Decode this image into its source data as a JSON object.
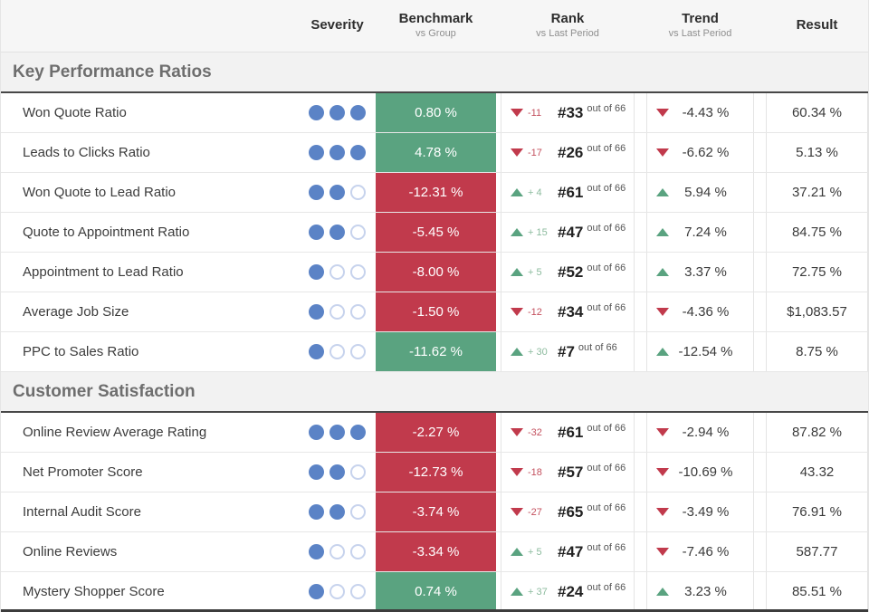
{
  "header": {
    "columns": [
      {
        "label": "Severity",
        "sublabel": ""
      },
      {
        "label": "Benchmark",
        "sublabel": "vs Group"
      },
      {
        "label": "Rank",
        "sublabel": "vs Last Period"
      },
      {
        "label": "Trend",
        "sublabel": "vs Last Period"
      },
      {
        "label": "Result",
        "sublabel": ""
      }
    ]
  },
  "severity_max": 3,
  "colors": {
    "positive": "#5aa380",
    "negative": "#c13a4c",
    "rank_delta_positive_text": "#8cbb9e",
    "rank_delta_negative_text": "#c4505e",
    "severity_dot_filled": "#5b83c6",
    "severity_dot_empty_border": "#c7d3ed"
  },
  "sections": [
    {
      "title": "Key Performance Ratios",
      "rows": [
        {
          "metric": "Won Quote Ratio",
          "severity": 3,
          "benchmark": {
            "value": "0.80 %",
            "status": "positive"
          },
          "rank": {
            "direction": "down",
            "delta": "-11",
            "position": "#33",
            "suffix": "out of 66"
          },
          "trend": {
            "direction": "down",
            "value": "-4.43 %"
          },
          "result": "60.34 %"
        },
        {
          "metric": "Leads to Clicks Ratio",
          "severity": 3,
          "benchmark": {
            "value": "4.78 %",
            "status": "positive"
          },
          "rank": {
            "direction": "down",
            "delta": "-17",
            "position": "#26",
            "suffix": "out of 66"
          },
          "trend": {
            "direction": "down",
            "value": "-6.62 %"
          },
          "result": "5.13 %"
        },
        {
          "metric": "Won Quote to Lead Ratio",
          "severity": 2,
          "benchmark": {
            "value": "-12.31 %",
            "status": "negative"
          },
          "rank": {
            "direction": "up",
            "delta": "+ 4",
            "position": "#61",
            "suffix": "out of 66"
          },
          "trend": {
            "direction": "up",
            "value": "5.94 %"
          },
          "result": "37.21 %"
        },
        {
          "metric": "Quote to Appointment Ratio",
          "severity": 2,
          "benchmark": {
            "value": "-5.45 %",
            "status": "negative"
          },
          "rank": {
            "direction": "up",
            "delta": "+ 15",
            "position": "#47",
            "suffix": "out of 66"
          },
          "trend": {
            "direction": "up",
            "value": "7.24 %"
          },
          "result": "84.75 %"
        },
        {
          "metric": "Appointment to Lead Ratio",
          "severity": 1,
          "benchmark": {
            "value": "-8.00 %",
            "status": "negative"
          },
          "rank": {
            "direction": "up",
            "delta": "+ 5",
            "position": "#52",
            "suffix": "out of 66"
          },
          "trend": {
            "direction": "up",
            "value": "3.37 %"
          },
          "result": "72.75 %"
        },
        {
          "metric": "Average Job Size",
          "severity": 1,
          "benchmark": {
            "value": "-1.50 %",
            "status": "negative"
          },
          "rank": {
            "direction": "down",
            "delta": "-12",
            "position": "#34",
            "suffix": "out of 66"
          },
          "trend": {
            "direction": "down",
            "value": "-4.36 %"
          },
          "result": "$1,083.57"
        },
        {
          "metric": "PPC to Sales Ratio",
          "severity": 1,
          "benchmark": {
            "value": "-11.62 %",
            "status": "positive"
          },
          "rank": {
            "direction": "up",
            "delta": "+ 30",
            "position": "#7",
            "suffix": "out of 66"
          },
          "trend": {
            "direction": "up",
            "value": "-12.54 %"
          },
          "result": "8.75 %"
        }
      ]
    },
    {
      "title": "Customer Satisfaction",
      "rows": [
        {
          "metric": "Online Review Average Rating",
          "severity": 3,
          "benchmark": {
            "value": "-2.27 %",
            "status": "negative"
          },
          "rank": {
            "direction": "down",
            "delta": "-32",
            "position": "#61",
            "suffix": "out of 66"
          },
          "trend": {
            "direction": "down",
            "value": "-2.94 %"
          },
          "result": "87.82 %"
        },
        {
          "metric": "Net Promoter Score",
          "severity": 2,
          "benchmark": {
            "value": "-12.73 %",
            "status": "negative"
          },
          "rank": {
            "direction": "down",
            "delta": "-18",
            "position": "#57",
            "suffix": "out of 66"
          },
          "trend": {
            "direction": "down",
            "value": "-10.69 %"
          },
          "result": "43.32"
        },
        {
          "metric": "Internal Audit Score",
          "severity": 2,
          "benchmark": {
            "value": "-3.74 %",
            "status": "negative"
          },
          "rank": {
            "direction": "down",
            "delta": "-27",
            "position": "#65",
            "suffix": "out of 66"
          },
          "trend": {
            "direction": "down",
            "value": "-3.49 %"
          },
          "result": "76.91 %"
        },
        {
          "metric": "Online Reviews",
          "severity": 1,
          "benchmark": {
            "value": "-3.34 %",
            "status": "negative"
          },
          "rank": {
            "direction": "up",
            "delta": "+ 5",
            "position": "#47",
            "suffix": "out of 66"
          },
          "trend": {
            "direction": "down",
            "value": "-7.46 %"
          },
          "result": "587.77"
        },
        {
          "metric": "Mystery Shopper Score",
          "severity": 1,
          "benchmark": {
            "value": "0.74 %",
            "status": "positive"
          },
          "rank": {
            "direction": "up",
            "delta": "+ 37",
            "position": "#24",
            "suffix": "out of 66"
          },
          "trend": {
            "direction": "up",
            "value": "3.23 %"
          },
          "result": "85.51 %"
        }
      ]
    }
  ]
}
